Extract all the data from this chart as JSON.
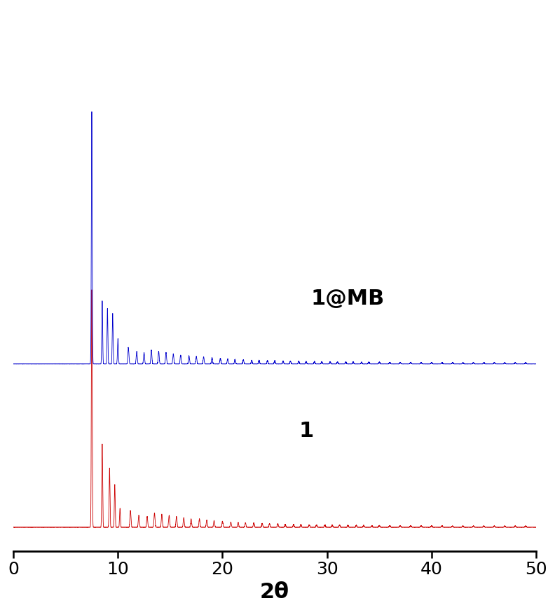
{
  "xlabel": "2θ",
  "xlim": [
    0,
    50
  ],
  "blue_label": "1@MB",
  "red_label": "1",
  "blue_color": "#0000cc",
  "red_color": "#cc0000",
  "xlabel_fontsize": 22,
  "tick_fontsize": 18,
  "label_fontsize": 22,
  "label_fontweight": "bold",
  "background_color": "#ffffff",
  "line_width": 0.6,
  "xticks": [
    0,
    10,
    20,
    30,
    40,
    50
  ],
  "blue_baseline": 0.55,
  "red_baseline": 0.0,
  "blue_scale": 0.85,
  "red_scale": 0.8,
  "ylim": [
    -0.08,
    1.75
  ]
}
